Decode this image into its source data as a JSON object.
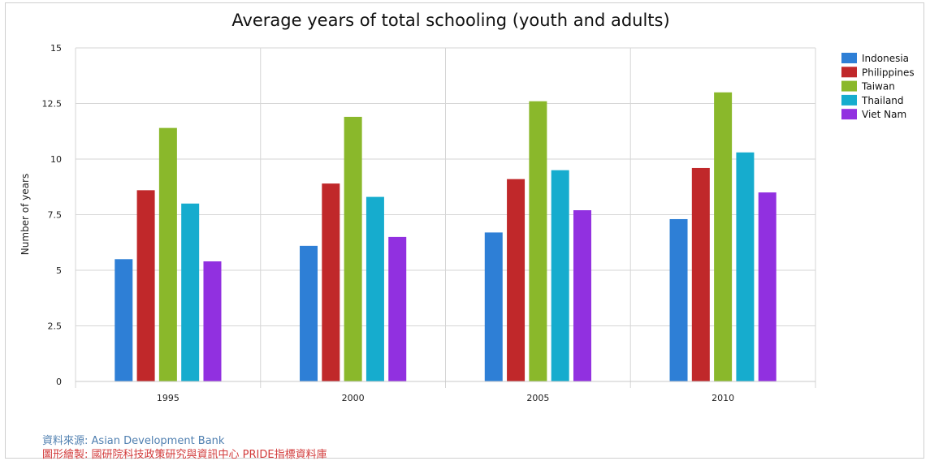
{
  "chart_data": {
    "type": "bar",
    "title": "Average years of total schooling (youth and adults)",
    "xlabel": "",
    "ylabel": "Number of years",
    "categories": [
      "1995",
      "2000",
      "2005",
      "2010"
    ],
    "ylim": [
      0,
      15
    ],
    "yticks": [
      0,
      2.5,
      5,
      7.5,
      10,
      12.5,
      15
    ],
    "ytick_labels": [
      "0",
      "2.5",
      "5",
      "7.5",
      "10",
      "12.5",
      "15"
    ],
    "grid": true,
    "legend_position": "top-right",
    "series": [
      {
        "name": "Indonesia",
        "color": "#2e7fd6",
        "values": [
          5.5,
          6.1,
          6.7,
          7.3
        ]
      },
      {
        "name": "Philippines",
        "color": "#c0282a",
        "values": [
          8.6,
          8.9,
          9.1,
          9.6
        ]
      },
      {
        "name": "Taiwan",
        "color": "#8ab82b",
        "values": [
          11.4,
          11.9,
          12.6,
          13.0
        ]
      },
      {
        "name": "Thailand",
        "color": "#16acce",
        "values": [
          8.0,
          8.3,
          9.5,
          10.3
        ]
      },
      {
        "name": "Viet Nam",
        "color": "#9130e0",
        "values": [
          5.4,
          6.5,
          7.7,
          8.5
        ]
      }
    ]
  },
  "source": {
    "source_label": "資料來源:",
    "source_text": "Asian Development Bank",
    "credit_label": "圖形繪製:",
    "credit_text": "國研院科技政策研究與資訊中心 PRIDE指標資料庫"
  }
}
